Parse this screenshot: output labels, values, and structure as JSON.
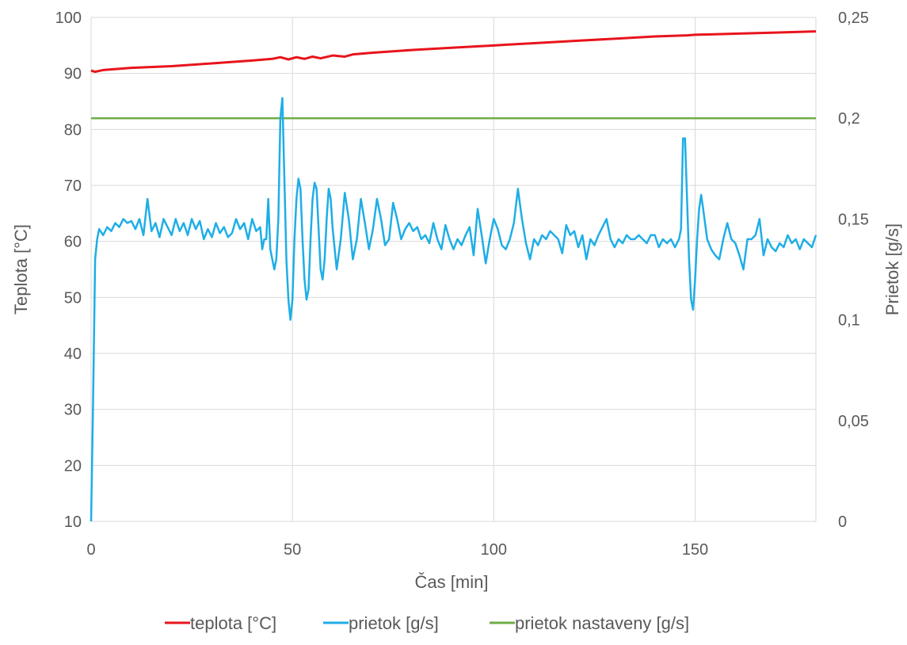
{
  "chart_data": {
    "type": "line",
    "title": "",
    "xlabel": "Čas [min]",
    "ylabel": "Teplota [°C]",
    "y2label": "Prietok [g/s]",
    "xlim": [
      0,
      180
    ],
    "ylim": [
      10,
      100
    ],
    "y2lim": [
      0,
      0.25
    ],
    "x_ticks": [
      0,
      50,
      100,
      150
    ],
    "x_tick_labels": [
      "0",
      "50",
      "100",
      "150"
    ],
    "y_ticks": [
      10,
      20,
      30,
      40,
      50,
      60,
      70,
      80,
      90,
      100
    ],
    "y_tick_labels": [
      "10",
      "20",
      "30",
      "40",
      "50",
      "60",
      "70",
      "80",
      "90",
      "100"
    ],
    "y2_ticks": [
      0,
      0.05,
      0.1,
      0.15,
      0.2,
      0.25
    ],
    "y2_tick_labels": [
      "0",
      "0,05",
      "0,1",
      "0,15",
      "0,2",
      "0,25"
    ],
    "grid": true,
    "legend_position": "bottom",
    "series": [
      {
        "name": "teplota [°C]",
        "axis": "left",
        "color": "#e8141c",
        "points": [
          [
            0,
            90.5
          ],
          [
            1,
            90.3
          ],
          [
            3,
            90.6
          ],
          [
            10,
            91.0
          ],
          [
            20,
            91.3
          ],
          [
            30,
            91.8
          ],
          [
            40,
            92.3
          ],
          [
            45,
            92.6
          ],
          [
            47,
            92.9
          ],
          [
            49,
            92.5
          ],
          [
            51,
            92.9
          ],
          [
            53,
            92.6
          ],
          [
            55,
            93.0
          ],
          [
            57,
            92.7
          ],
          [
            60,
            93.2
          ],
          [
            63,
            93.0
          ],
          [
            65,
            93.4
          ],
          [
            70,
            93.7
          ],
          [
            80,
            94.2
          ],
          [
            90,
            94.6
          ],
          [
            100,
            95.0
          ],
          [
            110,
            95.4
          ],
          [
            120,
            95.8
          ],
          [
            130,
            96.2
          ],
          [
            140,
            96.6
          ],
          [
            148,
            96.8
          ],
          [
            150,
            96.9
          ],
          [
            160,
            97.1
          ],
          [
            170,
            97.3
          ],
          [
            180,
            97.5
          ]
        ]
      },
      {
        "name": "prietok [g/s]",
        "axis": "right",
        "color": "#1eaee6",
        "points": [
          [
            0,
            0.0
          ],
          [
            0.5,
            0.06
          ],
          [
            1,
            0.13
          ],
          [
            1.5,
            0.14
          ],
          [
            2,
            0.145
          ],
          [
            3,
            0.142
          ],
          [
            4,
            0.146
          ],
          [
            5,
            0.144
          ],
          [
            6,
            0.148
          ],
          [
            7,
            0.146
          ],
          [
            8,
            0.15
          ],
          [
            9,
            0.148
          ],
          [
            10,
            0.149
          ],
          [
            11,
            0.145
          ],
          [
            12,
            0.15
          ],
          [
            13,
            0.142
          ],
          [
            14,
            0.16
          ],
          [
            15,
            0.144
          ],
          [
            16,
            0.148
          ],
          [
            17,
            0.141
          ],
          [
            18,
            0.15
          ],
          [
            19,
            0.146
          ],
          [
            20,
            0.142
          ],
          [
            21,
            0.15
          ],
          [
            22,
            0.144
          ],
          [
            23,
            0.148
          ],
          [
            24,
            0.142
          ],
          [
            25,
            0.15
          ],
          [
            26,
            0.145
          ],
          [
            27,
            0.149
          ],
          [
            28,
            0.14
          ],
          [
            29,
            0.145
          ],
          [
            30,
            0.141
          ],
          [
            31,
            0.148
          ],
          [
            32,
            0.143
          ],
          [
            33,
            0.146
          ],
          [
            34,
            0.141
          ],
          [
            35,
            0.143
          ],
          [
            36,
            0.15
          ],
          [
            37,
            0.145
          ],
          [
            38,
            0.148
          ],
          [
            39,
            0.14
          ],
          [
            40,
            0.15
          ],
          [
            41,
            0.144
          ],
          [
            42,
            0.146
          ],
          [
            42.5,
            0.135
          ],
          [
            43,
            0.14
          ],
          [
            43.5,
            0.14
          ],
          [
            44,
            0.16
          ],
          [
            44.5,
            0.135
          ],
          [
            45,
            0.13
          ],
          [
            45.5,
            0.125
          ],
          [
            46,
            0.13
          ],
          [
            46.5,
            0.15
          ],
          [
            47,
            0.2
          ],
          [
            47.5,
            0.21
          ],
          [
            48,
            0.17
          ],
          [
            48.5,
            0.13
          ],
          [
            49,
            0.11
          ],
          [
            49.5,
            0.1
          ],
          [
            50,
            0.11
          ],
          [
            50.5,
            0.14
          ],
          [
            51,
            0.16
          ],
          [
            51.5,
            0.17
          ],
          [
            52,
            0.165
          ],
          [
            52.5,
            0.14
          ],
          [
            53,
            0.12
          ],
          [
            53.5,
            0.11
          ],
          [
            54,
            0.115
          ],
          [
            54.5,
            0.14
          ],
          [
            55,
            0.16
          ],
          [
            55.5,
            0.168
          ],
          [
            56,
            0.165
          ],
          [
            56.5,
            0.145
          ],
          [
            57,
            0.125
          ],
          [
            57.5,
            0.12
          ],
          [
            58,
            0.13
          ],
          [
            58.5,
            0.15
          ],
          [
            59,
            0.165
          ],
          [
            59.5,
            0.16
          ],
          [
            60,
            0.145
          ],
          [
            61,
            0.125
          ],
          [
            62,
            0.14
          ],
          [
            63,
            0.163
          ],
          [
            64,
            0.15
          ],
          [
            65,
            0.13
          ],
          [
            66,
            0.14
          ],
          [
            67,
            0.16
          ],
          [
            68,
            0.148
          ],
          [
            69,
            0.135
          ],
          [
            70,
            0.145
          ],
          [
            71,
            0.16
          ],
          [
            72,
            0.15
          ],
          [
            73,
            0.137
          ],
          [
            74,
            0.14
          ],
          [
            75,
            0.158
          ],
          [
            76,
            0.15
          ],
          [
            77,
            0.14
          ],
          [
            78,
            0.145
          ],
          [
            79,
            0.148
          ],
          [
            80,
            0.144
          ],
          [
            81,
            0.146
          ],
          [
            82,
            0.14
          ],
          [
            83,
            0.142
          ],
          [
            84,
            0.138
          ],
          [
            85,
            0.148
          ],
          [
            86,
            0.14
          ],
          [
            87,
            0.135
          ],
          [
            88,
            0.147
          ],
          [
            89,
            0.14
          ],
          [
            90,
            0.135
          ],
          [
            91,
            0.14
          ],
          [
            92,
            0.137
          ],
          [
            93,
            0.142
          ],
          [
            94,
            0.146
          ],
          [
            95,
            0.132
          ],
          [
            96,
            0.155
          ],
          [
            97,
            0.142
          ],
          [
            98,
            0.128
          ],
          [
            99,
            0.14
          ],
          [
            100,
            0.15
          ],
          [
            101,
            0.145
          ],
          [
            102,
            0.137
          ],
          [
            103,
            0.135
          ],
          [
            104,
            0.14
          ],
          [
            105,
            0.148
          ],
          [
            106,
            0.165
          ],
          [
            107,
            0.15
          ],
          [
            108,
            0.138
          ],
          [
            109,
            0.13
          ],
          [
            110,
            0.14
          ],
          [
            111,
            0.137
          ],
          [
            112,
            0.142
          ],
          [
            113,
            0.14
          ],
          [
            114,
            0.144
          ],
          [
            115,
            0.142
          ],
          [
            116,
            0.14
          ],
          [
            117,
            0.133
          ],
          [
            118,
            0.147
          ],
          [
            119,
            0.142
          ],
          [
            120,
            0.144
          ],
          [
            121,
            0.136
          ],
          [
            122,
            0.142
          ],
          [
            123,
            0.13
          ],
          [
            124,
            0.14
          ],
          [
            125,
            0.137
          ],
          [
            126,
            0.142
          ],
          [
            127,
            0.146
          ],
          [
            128,
            0.15
          ],
          [
            129,
            0.14
          ],
          [
            130,
            0.136
          ],
          [
            131,
            0.14
          ],
          [
            132,
            0.138
          ],
          [
            133,
            0.142
          ],
          [
            134,
            0.14
          ],
          [
            135,
            0.14
          ],
          [
            136,
            0.142
          ],
          [
            137,
            0.14
          ],
          [
            138,
            0.138
          ],
          [
            139,
            0.142
          ],
          [
            140,
            0.142
          ],
          [
            141,
            0.136
          ],
          [
            142,
            0.14
          ],
          [
            143,
            0.138
          ],
          [
            144,
            0.14
          ],
          [
            145,
            0.136
          ],
          [
            146,
            0.14
          ],
          [
            146.5,
            0.145
          ],
          [
            147,
            0.19
          ],
          [
            147.5,
            0.19
          ],
          [
            148,
            0.16
          ],
          [
            148.5,
            0.13
          ],
          [
            149,
            0.11
          ],
          [
            149.5,
            0.105
          ],
          [
            150,
            0.12
          ],
          [
            150.5,
            0.14
          ],
          [
            151,
            0.155
          ],
          [
            151.5,
            0.162
          ],
          [
            152,
            0.155
          ],
          [
            153,
            0.14
          ],
          [
            154,
            0.135
          ],
          [
            155,
            0.132
          ],
          [
            156,
            0.13
          ],
          [
            157,
            0.14
          ],
          [
            158,
            0.148
          ],
          [
            159,
            0.14
          ],
          [
            160,
            0.138
          ],
          [
            161,
            0.132
          ],
          [
            162,
            0.125
          ],
          [
            163,
            0.14
          ],
          [
            164,
            0.14
          ],
          [
            165,
            0.142
          ],
          [
            166,
            0.15
          ],
          [
            167,
            0.132
          ],
          [
            168,
            0.14
          ],
          [
            169,
            0.136
          ],
          [
            170,
            0.134
          ],
          [
            171,
            0.138
          ],
          [
            172,
            0.136
          ],
          [
            173,
            0.142
          ],
          [
            174,
            0.138
          ],
          [
            175,
            0.14
          ],
          [
            176,
            0.135
          ],
          [
            177,
            0.14
          ],
          [
            178,
            0.138
          ],
          [
            179,
            0.136
          ],
          [
            180,
            0.142
          ]
        ]
      },
      {
        "name": "prietok nastaveny [g/s]",
        "axis": "right",
        "color": "#70ad47",
        "points": [
          [
            0,
            0.2
          ],
          [
            180,
            0.2
          ]
        ]
      }
    ]
  }
}
